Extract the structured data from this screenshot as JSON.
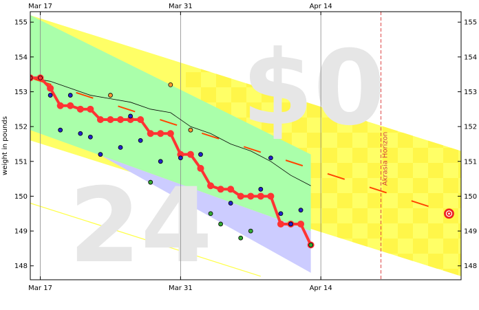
{
  "chart_data": {
    "type": "scatter",
    "ylabel": "weight in pounds",
    "ylim": [
      147.6,
      155.3
    ],
    "xlim": [
      "2024-03-16",
      "2024-04-28"
    ],
    "y_ticks": [
      148,
      149,
      150,
      151,
      152,
      153,
      154,
      155
    ],
    "x_ticks": [
      {
        "date": "2024-03-17",
        "label": "Mar 17"
      },
      {
        "date": "2024-03-31",
        "label": "Mar 31"
      },
      {
        "date": "2024-04-14",
        "label": "Apr 14"
      }
    ],
    "watermark_amount": "$0",
    "watermark_days": "24",
    "akrasia_horizon": {
      "date": "2024-04-20",
      "label": "Akrasia Horizon"
    },
    "goal_point": {
      "date": "2024-04-27",
      "value": 149.5
    },
    "colors": {
      "road_band": "#ffff66",
      "road_band_check": "#ffef33",
      "green_zone": "#aaffaa",
      "blue_zone": "#ccccff",
      "moving_avg_line": "#ff3333",
      "road_centerline": "#ff4400",
      "horizon_line": "#dd4444",
      "goal_target": "#ee2222",
      "point_blue": "#2222cc",
      "point_green": "#33aa33",
      "point_orange": "#ff9933",
      "old_road": "#ffff44",
      "avg_line": "#000000"
    },
    "series": [
      {
        "role": "datapoints",
        "points": [
          {
            "date": "2024-03-16",
            "value": 153.4,
            "color": "red"
          },
          {
            "date": "2024-03-17",
            "value": 153.4,
            "color": "red"
          },
          {
            "date": "2024-03-18",
            "value": 152.9,
            "color": "blue"
          },
          {
            "date": "2024-03-19",
            "value": 151.9,
            "color": "blue"
          },
          {
            "date": "2024-03-20",
            "value": 152.9,
            "color": "blue"
          },
          {
            "date": "2024-03-21",
            "value": 151.8,
            "color": "blue"
          },
          {
            "date": "2024-03-22",
            "value": 151.7,
            "color": "blue"
          },
          {
            "date": "2024-03-23",
            "value": 151.2,
            "color": "blue"
          },
          {
            "date": "2024-03-24",
            "value": 152.9,
            "color": "orange"
          },
          {
            "date": "2024-03-25",
            "value": 151.4,
            "color": "blue"
          },
          {
            "date": "2024-03-26",
            "value": 152.3,
            "color": "blue"
          },
          {
            "date": "2024-03-27",
            "value": 151.6,
            "color": "blue"
          },
          {
            "date": "2024-03-28",
            "value": 150.4,
            "color": "green"
          },
          {
            "date": "2024-03-29",
            "value": 151.0,
            "color": "blue"
          },
          {
            "date": "2024-03-30",
            "value": 153.2,
            "color": "orange"
          },
          {
            "date": "2024-03-31",
            "value": 151.1,
            "color": "blue"
          },
          {
            "date": "2024-04-01",
            "value": 151.9,
            "color": "orange"
          },
          {
            "date": "2024-04-02",
            "value": 151.2,
            "color": "blue"
          },
          {
            "date": "2024-04-03",
            "value": 149.5,
            "color": "green"
          },
          {
            "date": "2024-04-04",
            "value": 149.2,
            "color": "green"
          },
          {
            "date": "2024-04-05",
            "value": 149.8,
            "color": "blue"
          },
          {
            "date": "2024-04-06",
            "value": 148.8,
            "color": "green"
          },
          {
            "date": "2024-04-07",
            "value": 149.0,
            "color": "green"
          },
          {
            "date": "2024-04-08",
            "value": 150.2,
            "color": "blue"
          },
          {
            "date": "2024-04-09",
            "value": 151.1,
            "color": "blue"
          },
          {
            "date": "2024-04-10",
            "value": 149.5,
            "color": "blue"
          },
          {
            "date": "2024-04-11",
            "value": 149.2,
            "color": "blue"
          },
          {
            "date": "2024-04-12",
            "value": 149.6,
            "color": "blue"
          },
          {
            "date": "2024-04-13",
            "value": 148.6,
            "color": "green"
          }
        ]
      },
      {
        "role": "moving_average",
        "points": [
          {
            "date": "2024-03-16",
            "value": 153.4
          },
          {
            "date": "2024-03-17",
            "value": 153.4
          },
          {
            "date": "2024-03-18",
            "value": 153.1
          },
          {
            "date": "2024-03-19",
            "value": 152.6
          },
          {
            "date": "2024-03-20",
            "value": 152.6
          },
          {
            "date": "2024-03-21",
            "value": 152.5
          },
          {
            "date": "2024-03-22",
            "value": 152.5
          },
          {
            "date": "2024-03-23",
            "value": 152.2
          },
          {
            "date": "2024-03-24",
            "value": 152.2
          },
          {
            "date": "2024-03-25",
            "value": 152.2
          },
          {
            "date": "2024-03-26",
            "value": 152.2
          },
          {
            "date": "2024-03-27",
            "value": 152.2
          },
          {
            "date": "2024-03-28",
            "value": 151.8
          },
          {
            "date": "2024-03-29",
            "value": 151.8
          },
          {
            "date": "2024-03-30",
            "value": 151.8
          },
          {
            "date": "2024-03-31",
            "value": 151.2
          },
          {
            "date": "2024-04-01",
            "value": 151.2
          },
          {
            "date": "2024-04-02",
            "value": 150.8
          },
          {
            "date": "2024-04-03",
            "value": 150.3
          },
          {
            "date": "2024-04-04",
            "value": 150.2
          },
          {
            "date": "2024-04-05",
            "value": 150.2
          },
          {
            "date": "2024-04-06",
            "value": 150.0
          },
          {
            "date": "2024-04-07",
            "value": 150.0
          },
          {
            "date": "2024-04-08",
            "value": 150.0
          },
          {
            "date": "2024-04-09",
            "value": 150.0
          },
          {
            "date": "2024-04-10",
            "value": 149.2
          },
          {
            "date": "2024-04-11",
            "value": 149.2
          },
          {
            "date": "2024-04-12",
            "value": 149.2
          },
          {
            "date": "2024-04-13",
            "value": 148.6
          }
        ]
      },
      {
        "role": "trend_line",
        "points": [
          {
            "date": "2024-03-16",
            "value": 153.4
          },
          {
            "date": "2024-03-18",
            "value": 153.3
          },
          {
            "date": "2024-03-20",
            "value": 153.1
          },
          {
            "date": "2024-03-22",
            "value": 152.9
          },
          {
            "date": "2024-03-24",
            "value": 152.8
          },
          {
            "date": "2024-03-26",
            "value": 152.7
          },
          {
            "date": "2024-03-28",
            "value": 152.5
          },
          {
            "date": "2024-03-30",
            "value": 152.4
          },
          {
            "date": "2024-04-01",
            "value": 152.0
          },
          {
            "date": "2024-04-03",
            "value": 151.8
          },
          {
            "date": "2024-04-05",
            "value": 151.5
          },
          {
            "date": "2024-04-07",
            "value": 151.3
          },
          {
            "date": "2024-04-09",
            "value": 151.0
          },
          {
            "date": "2024-04-11",
            "value": 150.6
          },
          {
            "date": "2024-04-13",
            "value": 150.3
          }
        ]
      }
    ],
    "bright_red_line": {
      "start": {
        "date": "2024-03-16",
        "value": 153.4
      },
      "end": {
        "date": "2024-04-27",
        "value": 149.5
      }
    },
    "road_band": {
      "start": {
        "date": "2024-03-16",
        "upper": 155.2,
        "lower": 151.6
      },
      "end": {
        "date": "2024-04-28",
        "upper": 151.3,
        "lower": 147.7
      }
    },
    "green_zone": {
      "start": {
        "date": "2024-03-16",
        "upper": 155.2,
        "lower": 151.9
      },
      "end": {
        "date": "2024-04-13",
        "upper": 151.2,
        "lower": 149.0
      }
    },
    "blue_zone": {
      "start_date": "2024-03-23",
      "end_date": "2024-04-13",
      "lower_end": 147.8
    },
    "old_road": {
      "start": {
        "date": "2024-03-16",
        "value": 149.8
      },
      "end": {
        "date": "2024-04-08",
        "value": 147.7
      }
    }
  }
}
